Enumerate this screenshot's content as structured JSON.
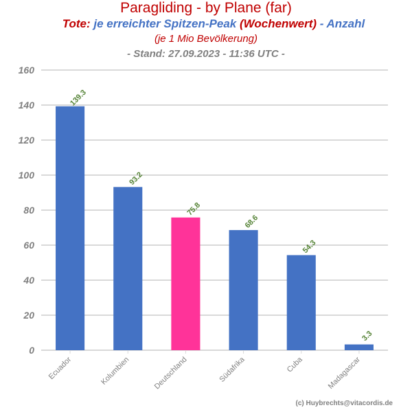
{
  "header": {
    "title": "Paragliding - by Plane (far)",
    "sub_part1": "Tote: ",
    "sub_part2": "je erreichter Spitzen-Peak ",
    "sub_part3": "(Wochenwert)",
    "sub_part4": " - Anzahl",
    "sub_line3": "(je 1 Mio Bevölkerung)",
    "stand": "- Stand: 27.09.2023 - 11:36 UTC -"
  },
  "credit": "(c) Huybrechts@vitacordis.de",
  "colors": {
    "title": "#c00000",
    "blue_text": "#4472c4",
    "bar": "#4472c4",
    "highlight_bar": "#ff3399",
    "data_label": "#548235",
    "grid": "#d9d9d9",
    "axis_text": "#808080"
  },
  "chart_data": {
    "type": "bar",
    "categories": [
      "Ecuador",
      "Kolumbien",
      "Deutschland",
      "Südafrika",
      "Cuba",
      "Madagascar"
    ],
    "values": [
      139.3,
      93.2,
      75.8,
      68.6,
      54.3,
      3.3
    ],
    "data_labels": [
      "139.3",
      "93.2",
      "75.8",
      "68.6",
      "54.3",
      "3.3"
    ],
    "highlight": [
      "Deutschland"
    ],
    "ylim": [
      0,
      160
    ],
    "yticks": [
      0,
      20,
      40,
      60,
      80,
      100,
      120,
      140,
      160
    ],
    "grid": true,
    "legend": "none"
  }
}
